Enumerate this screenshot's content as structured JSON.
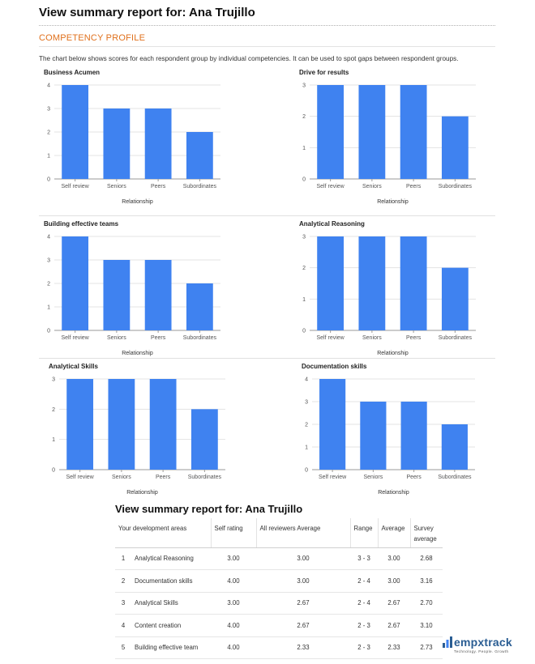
{
  "header": {
    "title": "View summary report for: Ana Trujillo"
  },
  "section": {
    "title": "COMPETENCY PROFILE",
    "intro": "The chart below shows scores for each respondent group by individual competencies. It can be used to spot gaps between respondent groups."
  },
  "colors": {
    "bar": "#3f82f0",
    "grid": "#e3e3e3",
    "accent": "#e0701c",
    "brand": "#2a5d93"
  },
  "chart_data": [
    {
      "type": "bar",
      "title": "Business Acumen",
      "categories": [
        "Self review",
        "Seniors",
        "Peers",
        "Subordinates"
      ],
      "values": [
        4,
        3,
        3,
        2
      ],
      "xlabel": "Relationship",
      "ylabel": "",
      "ylim": [
        0,
        4
      ],
      "yticks": [
        "0",
        "1",
        "2",
        "3",
        "4"
      ],
      "grid": true
    },
    {
      "type": "bar",
      "title": "Drive for results",
      "categories": [
        "Self review",
        "Seniors",
        "Peers",
        "Subordinates"
      ],
      "values": [
        3,
        3,
        3,
        2
      ],
      "xlabel": "Relationship",
      "ylabel": "",
      "ylim": [
        0,
        3
      ],
      "yticks": [
        "0",
        "1",
        "2",
        "3"
      ],
      "grid": true
    },
    {
      "type": "bar",
      "title": "Building effective teams",
      "categories": [
        "Self review",
        "Seniors",
        "Peers",
        "Subordinates"
      ],
      "values": [
        4,
        3,
        3,
        2
      ],
      "xlabel": "Relationship",
      "ylabel": "",
      "ylim": [
        0,
        4
      ],
      "yticks": [
        "0",
        "1",
        "2",
        "3",
        "4"
      ],
      "grid": true
    },
    {
      "type": "bar",
      "title": "Analytical Reasoning",
      "categories": [
        "Self review",
        "Seniors",
        "Peers",
        "Subordinates"
      ],
      "values": [
        3,
        3,
        3,
        2
      ],
      "xlabel": "Relationship",
      "ylabel": "",
      "ylim": [
        0,
        3
      ],
      "yticks": [
        "0",
        "1",
        "2",
        "3"
      ],
      "grid": true
    },
    {
      "type": "bar",
      "title": "Analytical Skills",
      "categories": [
        "Self review",
        "Seniors",
        "Peers",
        "Subordinates"
      ],
      "values": [
        3,
        3,
        3,
        2
      ],
      "xlabel": "Relationship",
      "ylabel": "",
      "ylim": [
        0,
        3
      ],
      "yticks": [
        "0",
        "1",
        "2",
        "3"
      ],
      "grid": true
    },
    {
      "type": "bar",
      "title": "Documentation skills",
      "categories": [
        "Self review",
        "Seniors",
        "Peers",
        "Subordinates"
      ],
      "values": [
        4,
        3,
        3,
        2
      ],
      "xlabel": "Relationship",
      "ylabel": "",
      "ylim": [
        0,
        4
      ],
      "yticks": [
        "0",
        "1",
        "2",
        "3",
        "4"
      ],
      "grid": true
    }
  ],
  "summary": {
    "title": "View summary report for: Ana Trujillo",
    "columns": [
      "Your development areas",
      "Self rating",
      "All reviewers Average",
      "Range",
      "Average",
      "Survey average"
    ],
    "rows": [
      {
        "num": "1",
        "area": "Analytical Reasoning",
        "self": "3.00",
        "all": "3.00",
        "range": "3 - 3",
        "avg": "3.00",
        "survey": "2.68"
      },
      {
        "num": "2",
        "area": "Documentation skills",
        "self": "4.00",
        "all": "3.00",
        "range": "2 - 4",
        "avg": "3.00",
        "survey": "3.16"
      },
      {
        "num": "3",
        "area": "Analytical Skills",
        "self": "3.00",
        "all": "2.67",
        "range": "2 - 4",
        "avg": "2.67",
        "survey": "2.70"
      },
      {
        "num": "4",
        "area": "Content creation",
        "self": "4.00",
        "all": "2.67",
        "range": "2 - 3",
        "avg": "2.67",
        "survey": "3.10"
      },
      {
        "num": "5",
        "area": "Building effective team",
        "self": "4.00",
        "all": "2.33",
        "range": "2 - 3",
        "avg": "2.33",
        "survey": "2.73"
      }
    ]
  },
  "logo": {
    "name": "empxtrack",
    "tagline": "Technology. People. Growth",
    "icon": "bar-chart-logo-icon"
  }
}
